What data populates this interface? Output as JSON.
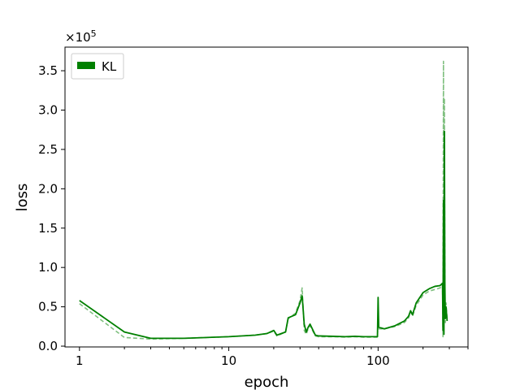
{
  "chart_data": {
    "type": "line",
    "xlabel": "epoch",
    "ylabel": "loss",
    "x_scale": "log",
    "xlim": [
      0.8,
      400
    ],
    "ylim": [
      -1000,
      380000
    ],
    "y_multiplier_label": "×10",
    "y_multiplier_exponent": "5",
    "x_ticks": [
      {
        "value": 1,
        "label": "1"
      },
      {
        "value": 10,
        "label": "10"
      },
      {
        "value": 100,
        "label": "100"
      }
    ],
    "y_ticks": [
      {
        "value": 0,
        "label": "0.0"
      },
      {
        "value": 50000,
        "label": "0.5"
      },
      {
        "value": 100000,
        "label": "1.0"
      },
      {
        "value": 150000,
        "label": "1.5"
      },
      {
        "value": 200000,
        "label": "2.0"
      },
      {
        "value": 250000,
        "label": "2.5"
      },
      {
        "value": 300000,
        "label": "3.0"
      },
      {
        "value": 350000,
        "label": "3.5"
      }
    ],
    "grid": false,
    "legend": {
      "position": "top-left",
      "entries": [
        "KL"
      ]
    },
    "series": [
      {
        "name": "KL",
        "color": "#008000",
        "style": "solid",
        "x": [
          1,
          2,
          3,
          5,
          10,
          15,
          18,
          20,
          21,
          24,
          25,
          28,
          30,
          31,
          32,
          33,
          34,
          35,
          38,
          40,
          50,
          60,
          70,
          80,
          90,
          99,
          100,
          101,
          110,
          130,
          150,
          160,
          165,
          170,
          180,
          200,
          220,
          240,
          260,
          270,
          272,
          274,
          276,
          278,
          280,
          282,
          285,
          290
        ],
        "y": [
          58000,
          18000,
          10000,
          10000,
          12000,
          14000,
          16000,
          20000,
          14000,
          18000,
          36000,
          40000,
          55000,
          64000,
          28000,
          18000,
          24000,
          28000,
          14000,
          13000,
          12500,
          12000,
          12500,
          12000,
          12000,
          12000,
          62000,
          24000,
          22000,
          26000,
          32000,
          38000,
          45000,
          40000,
          55000,
          68000,
          73000,
          76000,
          77000,
          80000,
          20000,
          185000,
          15000,
          273000,
          80000,
          35000,
          50000,
          32000
        ]
      },
      {
        "name": "",
        "color": "#008000",
        "style": "dashed",
        "x": [
          1,
          2,
          3,
          5,
          10,
          15,
          18,
          20,
          21,
          24,
          25,
          28,
          30,
          31,
          32,
          33,
          34,
          35,
          38,
          40,
          50,
          60,
          70,
          80,
          90,
          99,
          100,
          101,
          110,
          130,
          150,
          160,
          165,
          170,
          180,
          200,
          220,
          240,
          260,
          270,
          272,
          274,
          276,
          278,
          280,
          282,
          285,
          290
        ],
        "y": [
          54000,
          11000,
          9000,
          10000,
          12000,
          14000,
          16000,
          19000,
          13000,
          18000,
          35000,
          42000,
          58000,
          74000,
          20000,
          15000,
          22000,
          26000,
          13000,
          12000,
          12000,
          11500,
          12000,
          11500,
          11500,
          11500,
          35000,
          22000,
          22000,
          25000,
          30000,
          36000,
          44000,
          38000,
          52000,
          65000,
          70000,
          72000,
          74000,
          78000,
          12000,
          362000,
          40000,
          315000,
          60000,
          30000,
          55000,
          35000
        ]
      }
    ]
  }
}
